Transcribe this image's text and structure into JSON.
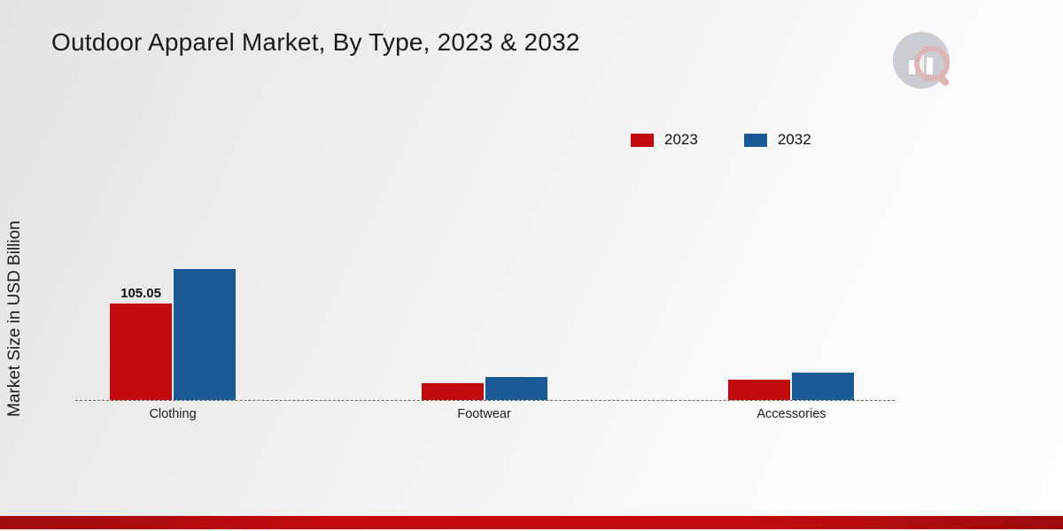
{
  "title": "Outdoor Apparel Market, By Type, 2023 & 2032",
  "colors": {
    "series_2023": "#c20b0e",
    "series_2032": "#1b5a96",
    "footer_red": "#c20b0e",
    "footer_red_dark": "#9e0b0f"
  },
  "chart_data": {
    "type": "bar",
    "title": "Outdoor Apparel Market, By Type, 2023 & 2032",
    "xlabel": "",
    "ylabel": "Market Size in USD Billion",
    "categories": [
      "Clothing",
      "Footwear",
      "Accessories"
    ],
    "series": [
      {
        "name": "2023",
        "color": "#c20b0e",
        "values": [
          105.05,
          18.5,
          22
        ]
      },
      {
        "name": "2032",
        "color": "#1b5a96",
        "values": [
          143,
          25.5,
          30
        ]
      }
    ],
    "annotations": [
      {
        "category": "Clothing",
        "series": "2023",
        "text": "105.05"
      }
    ],
    "baseline": "dashed",
    "grid": false,
    "legend_position": "top-right",
    "ylim": [
      0,
      292
    ]
  }
}
